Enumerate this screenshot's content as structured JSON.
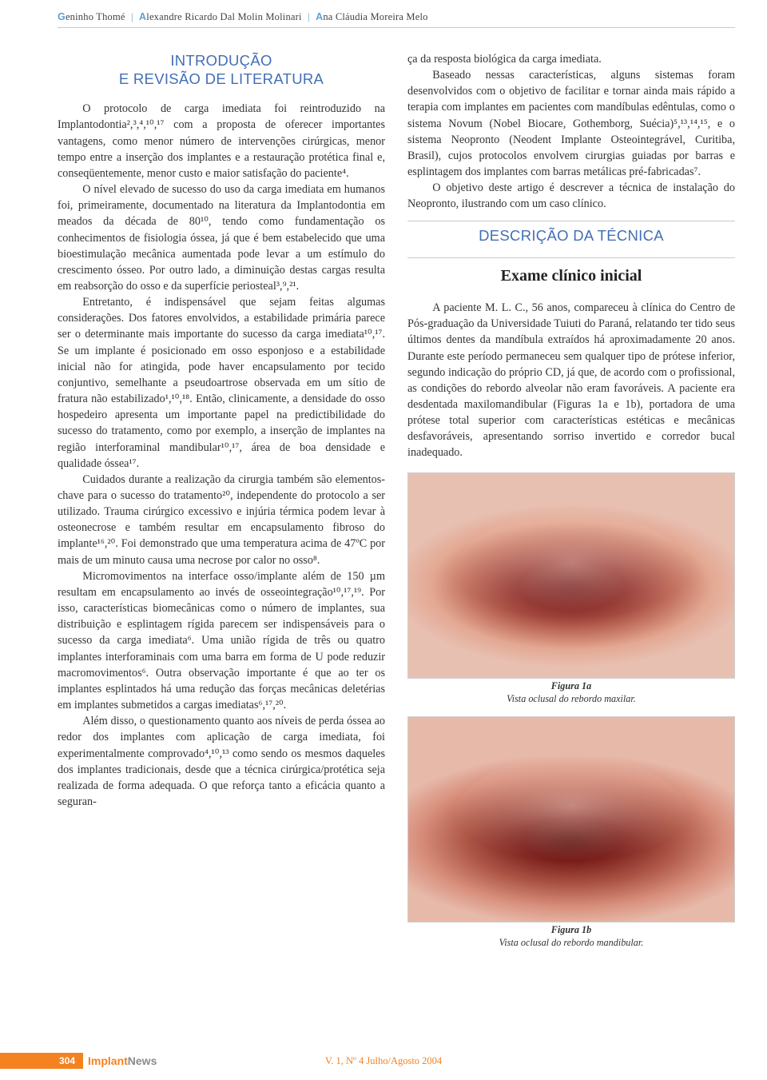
{
  "authors": {
    "a1_initial": "G",
    "a1_rest": "eninho Thomé",
    "a2_initial": "A",
    "a2_rest": "lexandre Ricardo Dal Molin Molinari",
    "a3_initial": "A",
    "a3_rest": "na Cláudia Moreira Melo",
    "sep": "|"
  },
  "heading1_line1": "INTRODUÇÃO",
  "heading1_line2": "E REVISÃO DE LITERATURA",
  "left": {
    "p1": "O protocolo de carga imediata foi reintroduzido na Implantodontia²,³,⁴,¹⁰,¹⁷ com a proposta de oferecer importantes vantagens, como menor número de intervenções cirúrgicas, menor tempo entre a inserção dos implantes e a restauração protética final e, conseqüentemente, menor custo e maior satisfação do paciente⁴.",
    "p2": "O nível elevado de sucesso do uso da carga imediata em humanos foi, primeiramente, documentado na literatura da Implantodontia em meados da década de 80¹⁰, tendo como fundamentação os conhecimentos de fisiologia óssea, já que é bem estabelecido que uma bioestimulação mecânica aumentada pode levar a um estímulo do crescimento ósseo. Por outro lado, a diminuição destas cargas resulta em reabsorção do osso e da superfície periosteal³,⁹,²¹.",
    "p3": "Entretanto, é indispensável que sejam feitas algumas considerações. Dos fatores envolvidos, a estabilidade primária parece ser o determinante mais importante do sucesso da carga imediata¹⁰,¹⁷. Se um implante é posicionado em osso esponjoso e a estabilidade inicial não for atingida, pode haver encapsulamento por tecido conjuntivo, semelhante a pseudoartrose observada em um sítio de fratura não estabilizado¹,¹⁰,¹⁸. Então, clinicamente, a densidade do osso hospedeiro apresenta um importante papel na predictibilidade do sucesso do tratamento, como por exemplo, a inserção de implantes na região interforaminal mandibular¹⁰,¹⁷, área de boa densidade e qualidade óssea¹⁷.",
    "p4": "Cuidados durante a realização da cirurgia também são elementos-chave para o sucesso do tratamento²⁰, independente do protocolo a ser utilizado. Trauma cirúrgico excessivo e injúria térmica podem levar à osteonecrose e também resultar em encapsulamento fibroso do implante¹⁶,²⁰. Foi demonstrado que uma temperatura acima de 47ºC por mais de um minuto causa uma necrose por calor no osso⁸.",
    "p5": "Micromovimentos na interface osso/implante além de 150 µm resultam em encapsulamento ao invés de osseointegração¹⁰,¹⁷,¹⁹. Por isso, características biomecânicas como o número de implantes, sua distribuição e esplintagem rígida parecem ser indispensáveis para o sucesso da carga imediata⁶. Uma união rígida de três ou quatro implantes interforaminais com uma barra em forma de U pode reduzir macromovimentos⁶. Outra observação importante é que ao ter os implantes esplintados há uma redução das forças mecânicas deletérias em implantes submetidos a cargas imediatas⁶,¹⁷,²⁰.",
    "p6": "Além disso, o questionamento quanto aos níveis de perda óssea ao redor dos implantes com aplicação de carga imediata, foi experimentalmente comprovado⁴,¹⁰,¹³ como sendo os mesmos daqueles dos implantes tradicionais, desde que a técnica cirúrgica/protética seja realizada de forma adequada. O que reforça tanto a eficácia quanto a seguran-"
  },
  "right": {
    "p1": "ça da resposta biológica da carga imediata.",
    "p2": "Baseado nessas características, alguns sistemas foram desenvolvidos com o objetivo de facilitar e tornar ainda mais rápido a terapia com implantes em pacientes com mandíbulas edêntulas, como o sistema Novum (Nobel Biocare, Gothemborg, Suécia)⁵,¹³,¹⁴,¹⁵, e o sistema Neopronto (Neodent Implante Osteointegrável, Curitiba, Brasil), cujos protocolos envolvem cirurgias guiadas por barras e esplintagem dos implantes com barras metálicas pré-fabricadas⁷.",
    "p3": "O objetivo deste artigo é descrever a técnica de instalação do Neopronto, ilustrando com um caso clínico."
  },
  "heading2": "DESCRIÇÃO DA TÉCNICA",
  "subheading": "Exame clínico inicial",
  "clinical": {
    "p1": "A paciente M. L. C., 56 anos, compareceu à clínica do Centro de Pós-graduação da Universidade Tuiuti do Paraná, relatando ter tido seus últimos dentes da mandíbula extraídos há aproximadamente 20 anos. Durante este período permaneceu sem qualquer tipo de prótese inferior, segundo indicação do próprio CD, já que, de acordo com o profissional, as condições do rebordo alveolar não eram favoráveis. A paciente era desdentada maxilomandibular (Figuras 1a e 1b), portadora de uma prótese total superior com características estéticas e mecânicas desfavoráveis, apresentando sorriso invertido e corredor bucal inadequado."
  },
  "fig1a_num": "Figura 1a",
  "fig1a_cap": "Vista oclusal do rebordo maxilar.",
  "fig1b_num": "Figura 1b",
  "fig1b_cap": "Vista oclusal do rebordo mandibular.",
  "footer": {
    "page": "304",
    "logo_a": "    Implant",
    "logo_b": "News",
    "issue": "V. 1, Nº 4 Julho/Agosto 2004"
  }
}
